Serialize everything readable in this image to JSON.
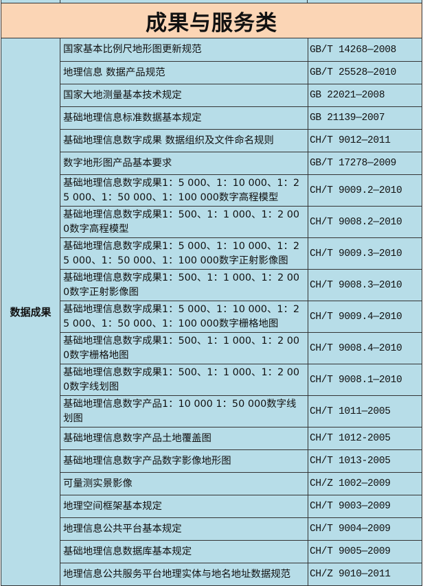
{
  "title": "成果与服务类",
  "category": "数据成果",
  "rows": [
    {
      "name": "国家基本比例尺地形图更新规范",
      "code": "GB/T 14268—2008"
    },
    {
      "name": "地理信息 数据产品规范",
      "code": "GB/T 25528—2010"
    },
    {
      "name": "国家大地测量基本技术规定",
      "code": "GB 22021—2008"
    },
    {
      "name": "基础地理信息标准数据基本规定",
      "code": "GB 21139—2007"
    },
    {
      "name": "基础地理信息数字成果 数据组织及文件命名规则",
      "code": "CH/T 9012—2011"
    },
    {
      "name": "数字地形图产品基本要求",
      "code": "GB/T 17278—2009"
    },
    {
      "name": "基础地理信息数字成果1：5 000、1：10 000、1：25 000、1：50 000、1：100 000数字高程模型",
      "code": "CH/T 9009.2—2010"
    },
    {
      "name": "基础地理信息数字成果1：500、1：1 000、1：2 000数字高程模型",
      "code": "CH/T 9008.2—2010"
    },
    {
      "name": "基础地理信息数字成果1：5 000、1：10 000、1：25 000、1：50 000、1：100 000数字正射影像图",
      "code": "CH/T 9009.3—2010"
    },
    {
      "name": "基础地理信息数字成果1：500、1：1 000、1：2 000数字正射影像图",
      "code": "CH/T 9008.3—2010"
    },
    {
      "name": "基础地理信息数字成果1：5 000、1：10 000、1：25 000、1：50 000、1：100 000数字栅格地图",
      "code": "CH/T 9009.4—2010"
    },
    {
      "name": "基础地理信息数字成果1：500、1：1 000、1：2 000数字栅格地图",
      "code": "CH/T 9008.4—2010"
    },
    {
      "name": "基础地理信息数字成果1：500、1：1 000、1：2 000数字线划图",
      "code": "CH/T 9008.1—2010"
    },
    {
      "name": "基础地理信息数字产品1：10 000 1：50 000数字线划图",
      "code": "CH/T 1011—2005"
    },
    {
      "name": "基础地理信息数字产品土地覆盖图",
      "code": "CH/T 1012-2005"
    },
    {
      "name": "基础地理信息数字产品数字影像地形图",
      "code": "CH/T 1013-2005"
    },
    {
      "name": "可量测实景影像",
      "code": "CH/Z 1002—2009"
    },
    {
      "name": "地理空间框架基本规定",
      "code": "CH/T 9003—2009"
    },
    {
      "name": "地理信息公共平台基本规定",
      "code": "CH/T 9004—2009"
    },
    {
      "name": "基础地理信息数据库基本规定",
      "code": "CH/T 9005—2009"
    },
    {
      "name": "地理信息公共服务平台地理实体与地名地址数据规范",
      "code": "CH/Z 9010—2011"
    }
  ]
}
